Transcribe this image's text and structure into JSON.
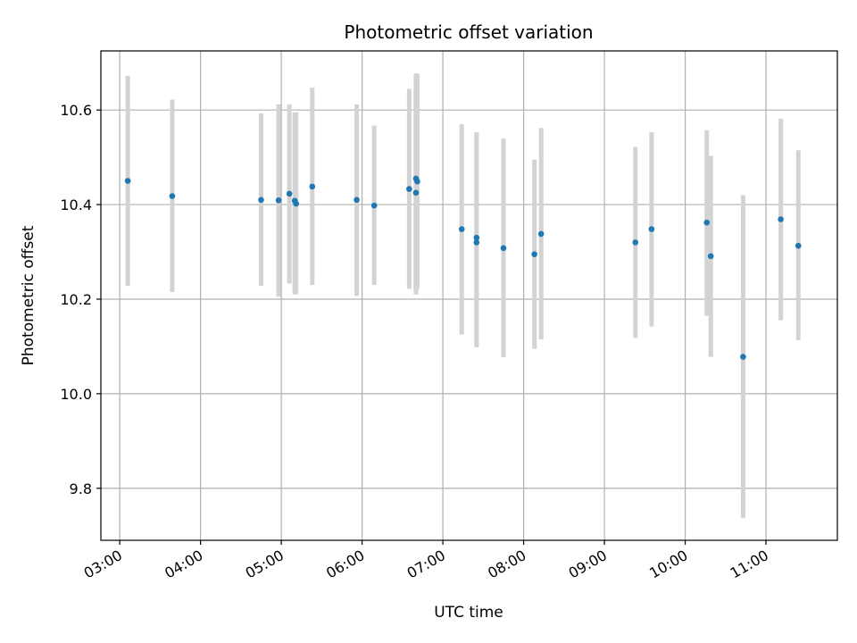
{
  "chart_data": {
    "type": "scatter",
    "title": "Photometric offset variation",
    "xlabel": "UTC time",
    "ylabel": "Photometric offset",
    "x_unit": "UTC time (HH:MM)",
    "xlim": [
      "02:46",
      "11:53"
    ],
    "ylim": [
      9.69,
      10.725
    ],
    "xticks": [
      "03:00",
      "04:00",
      "05:00",
      "06:00",
      "07:00",
      "08:00",
      "09:00",
      "10:00",
      "11:00"
    ],
    "yticks": [
      9.8,
      10.0,
      10.2,
      10.4,
      10.6
    ],
    "ytick_labels": [
      "9.8",
      "10.0",
      "10.2",
      "10.4",
      "10.6"
    ],
    "grid": true,
    "marker_color": "#1f77b4",
    "errorbar_color": "#d3d3d3",
    "points": [
      {
        "time": "03:06",
        "y": 10.45,
        "lo": 10.228,
        "hi": 10.672
      },
      {
        "time": "03:39",
        "y": 10.418,
        "lo": 10.215,
        "hi": 10.622
      },
      {
        "time": "04:45",
        "y": 10.41,
        "lo": 10.228,
        "hi": 10.593
      },
      {
        "time": "04:58",
        "y": 10.409,
        "lo": 10.205,
        "hi": 10.612
      },
      {
        "time": "05:06",
        "y": 10.423,
        "lo": 10.233,
        "hi": 10.612
      },
      {
        "time": "05:10",
        "y": 10.408,
        "lo": 10.21,
        "hi": 10.595
      },
      {
        "time": "05:11",
        "y": 10.402,
        "lo": 10.21,
        "hi": 10.595
      },
      {
        "time": "05:23",
        "y": 10.438,
        "lo": 10.23,
        "hi": 10.647
      },
      {
        "time": "05:56",
        "y": 10.41,
        "lo": 10.207,
        "hi": 10.612
      },
      {
        "time": "06:09",
        "y": 10.398,
        "lo": 10.23,
        "hi": 10.567
      },
      {
        "time": "06:35",
        "y": 10.433,
        "lo": 10.222,
        "hi": 10.645
      },
      {
        "time": "06:40",
        "y": 10.455,
        "lo": 10.21,
        "hi": 10.677
      },
      {
        "time": "06:40",
        "y": 10.425,
        "lo": 10.21,
        "hi": 10.677
      },
      {
        "time": "06:41",
        "y": 10.449,
        "lo": 10.222,
        "hi": 10.677
      },
      {
        "time": "07:14",
        "y": 10.348,
        "lo": 10.125,
        "hi": 10.57
      },
      {
        "time": "07:25",
        "y": 10.33,
        "lo": 10.105,
        "hi": 10.553
      },
      {
        "time": "07:25",
        "y": 10.32,
        "lo": 10.098,
        "hi": 10.55
      },
      {
        "time": "07:45",
        "y": 10.308,
        "lo": 10.077,
        "hi": 10.54
      },
      {
        "time": "08:08",
        "y": 10.295,
        "lo": 10.095,
        "hi": 10.495
      },
      {
        "time": "08:13",
        "y": 10.338,
        "lo": 10.115,
        "hi": 10.562
      },
      {
        "time": "09:23",
        "y": 10.32,
        "lo": 10.118,
        "hi": 10.522
      },
      {
        "time": "09:35",
        "y": 10.348,
        "lo": 10.142,
        "hi": 10.553
      },
      {
        "time": "10:16",
        "y": 10.362,
        "lo": 10.165,
        "hi": 10.557
      },
      {
        "time": "10:19",
        "y": 10.291,
        "lo": 10.078,
        "hi": 10.503
      },
      {
        "time": "10:43",
        "y": 10.078,
        "lo": 9.737,
        "hi": 10.42
      },
      {
        "time": "11:11",
        "y": 10.369,
        "lo": 10.155,
        "hi": 10.582
      },
      {
        "time": "11:24",
        "y": 10.313,
        "lo": 10.113,
        "hi": 10.515
      }
    ]
  }
}
